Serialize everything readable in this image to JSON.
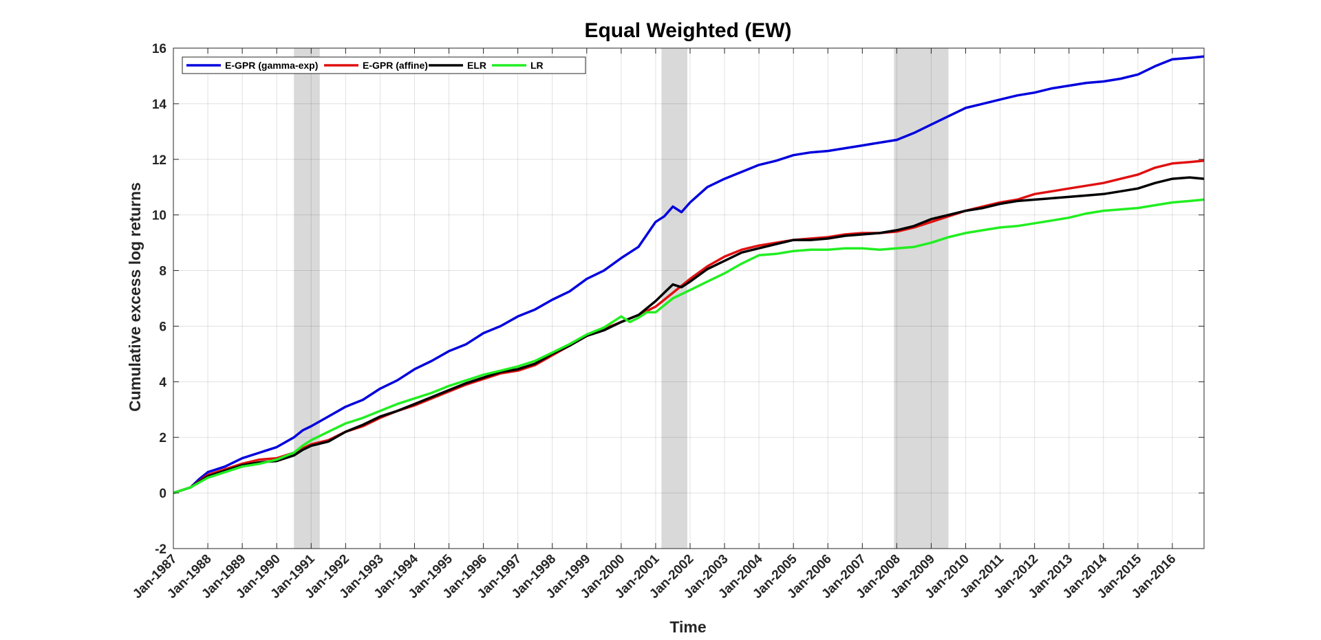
{
  "chart_data": {
    "type": "line",
    "title": "Equal Weighted (EW)",
    "xlabel": "Time",
    "ylabel": "Cumulative excess log returns",
    "xlim": [
      1987.0,
      2016.92
    ],
    "ylim": [
      -2,
      16
    ],
    "yticks": [
      -2,
      0,
      2,
      4,
      6,
      8,
      10,
      12,
      14,
      16
    ],
    "xticks": [
      {
        "label": "Jan-1987",
        "x": 1987
      },
      {
        "label": "Jan-1988",
        "x": 1988
      },
      {
        "label": "Jan-1989",
        "x": 1989
      },
      {
        "label": "Jan-1990",
        "x": 1990
      },
      {
        "label": "Jan-1991",
        "x": 1991
      },
      {
        "label": "Jan-1992",
        "x": 1992
      },
      {
        "label": "Jan-1993",
        "x": 1993
      },
      {
        "label": "Jan-1994",
        "x": 1994
      },
      {
        "label": "Jan-1995",
        "x": 1995
      },
      {
        "label": "Jan-1996",
        "x": 1996
      },
      {
        "label": "Jan-1997",
        "x": 1997
      },
      {
        "label": "Jan-1998",
        "x": 1998
      },
      {
        "label": "Jan-1999",
        "x": 1999
      },
      {
        "label": "Jan-2000",
        "x": 2000
      },
      {
        "label": "Jan-2001",
        "x": 2001
      },
      {
        "label": "Jan-2002",
        "x": 2002
      },
      {
        "label": "Jan-2003",
        "x": 2003
      },
      {
        "label": "Jan-2004",
        "x": 2004
      },
      {
        "label": "Jan-2005",
        "x": 2005
      },
      {
        "label": "Jan-2006",
        "x": 2006
      },
      {
        "label": "Jan-2007",
        "x": 2007
      },
      {
        "label": "Jan-2008",
        "x": 2008
      },
      {
        "label": "Jan-2009",
        "x": 2009
      },
      {
        "label": "Jan-2010",
        "x": 2010
      },
      {
        "label": "Jan-2011",
        "x": 2011
      },
      {
        "label": "Jan-2012",
        "x": 2012
      },
      {
        "label": "Jan-2013",
        "x": 2013
      },
      {
        "label": "Jan-2014",
        "x": 2014
      },
      {
        "label": "Jan-2015",
        "x": 2015
      },
      {
        "label": "Jan-2016",
        "x": 2016
      }
    ],
    "grid": true,
    "legend_position": "top-left",
    "shaded_periods": [
      {
        "start": 1990.5,
        "end": 1991.25
      },
      {
        "start": 2001.17,
        "end": 2001.92
      },
      {
        "start": 2007.92,
        "end": 2009.5
      }
    ],
    "shade_color": "#d9d9d9",
    "series": [
      {
        "name": "E-GPR (gamma-exp)",
        "color": "#0000dd",
        "points": [
          [
            1987.0,
            0.0
          ],
          [
            1987.5,
            0.2
          ],
          [
            1987.75,
            0.5
          ],
          [
            1988.0,
            0.75
          ],
          [
            1988.5,
            0.95
          ],
          [
            1989.0,
            1.25
          ],
          [
            1989.5,
            1.45
          ],
          [
            1990.0,
            1.65
          ],
          [
            1990.5,
            2.0
          ],
          [
            1990.75,
            2.25
          ],
          [
            1991.0,
            2.4
          ],
          [
            1991.5,
            2.75
          ],
          [
            1992.0,
            3.1
          ],
          [
            1992.5,
            3.35
          ],
          [
            1993.0,
            3.75
          ],
          [
            1993.5,
            4.05
          ],
          [
            1994.0,
            4.45
          ],
          [
            1994.5,
            4.75
          ],
          [
            1995.0,
            5.1
          ],
          [
            1995.5,
            5.35
          ],
          [
            1996.0,
            5.75
          ],
          [
            1996.5,
            6.0
          ],
          [
            1997.0,
            6.35
          ],
          [
            1997.5,
            6.6
          ],
          [
            1998.0,
            6.95
          ],
          [
            1998.5,
            7.25
          ],
          [
            1999.0,
            7.7
          ],
          [
            1999.5,
            8.0
          ],
          [
            2000.0,
            8.45
          ],
          [
            2000.5,
            8.85
          ],
          [
            2000.75,
            9.3
          ],
          [
            2001.0,
            9.75
          ],
          [
            2001.25,
            9.95
          ],
          [
            2001.5,
            10.3
          ],
          [
            2001.75,
            10.1
          ],
          [
            2002.0,
            10.45
          ],
          [
            2002.5,
            11.0
          ],
          [
            2003.0,
            11.3
          ],
          [
            2003.5,
            11.55
          ],
          [
            2004.0,
            11.8
          ],
          [
            2004.5,
            11.95
          ],
          [
            2005.0,
            12.15
          ],
          [
            2005.5,
            12.25
          ],
          [
            2006.0,
            12.3
          ],
          [
            2006.5,
            12.4
          ],
          [
            2007.0,
            12.5
          ],
          [
            2007.5,
            12.6
          ],
          [
            2008.0,
            12.7
          ],
          [
            2008.5,
            12.95
          ],
          [
            2009.0,
            13.25
          ],
          [
            2009.5,
            13.55
          ],
          [
            2010.0,
            13.85
          ],
          [
            2010.5,
            14.0
          ],
          [
            2011.0,
            14.15
          ],
          [
            2011.5,
            14.3
          ],
          [
            2012.0,
            14.4
          ],
          [
            2012.5,
            14.55
          ],
          [
            2013.0,
            14.65
          ],
          [
            2013.5,
            14.75
          ],
          [
            2014.0,
            14.8
          ],
          [
            2014.5,
            14.9
          ],
          [
            2015.0,
            15.05
          ],
          [
            2015.5,
            15.35
          ],
          [
            2016.0,
            15.6
          ],
          [
            2016.5,
            15.65
          ],
          [
            2016.92,
            15.7
          ]
        ]
      },
      {
        "name": "E-GPR (affine)",
        "color": "#e01010",
        "points": [
          [
            1987.0,
            0.0
          ],
          [
            1987.5,
            0.2
          ],
          [
            1988.0,
            0.65
          ],
          [
            1988.5,
            0.85
          ],
          [
            1989.0,
            1.05
          ],
          [
            1989.5,
            1.2
          ],
          [
            1990.0,
            1.25
          ],
          [
            1990.5,
            1.45
          ],
          [
            1990.75,
            1.6
          ],
          [
            1991.0,
            1.75
          ],
          [
            1991.5,
            1.9
          ],
          [
            1992.0,
            2.2
          ],
          [
            1992.5,
            2.4
          ],
          [
            1993.0,
            2.7
          ],
          [
            1993.5,
            2.95
          ],
          [
            1994.0,
            3.15
          ],
          [
            1994.5,
            3.4
          ],
          [
            1995.0,
            3.65
          ],
          [
            1995.5,
            3.9
          ],
          [
            1996.0,
            4.1
          ],
          [
            1996.5,
            4.3
          ],
          [
            1997.0,
            4.4
          ],
          [
            1997.5,
            4.6
          ],
          [
            1998.0,
            4.95
          ],
          [
            1998.5,
            5.3
          ],
          [
            1999.0,
            5.65
          ],
          [
            1999.5,
            5.9
          ],
          [
            2000.0,
            6.15
          ],
          [
            2000.5,
            6.4
          ],
          [
            2001.0,
            6.7
          ],
          [
            2001.5,
            7.2
          ],
          [
            2002.0,
            7.7
          ],
          [
            2002.5,
            8.15
          ],
          [
            2003.0,
            8.5
          ],
          [
            2003.5,
            8.75
          ],
          [
            2004.0,
            8.9
          ],
          [
            2004.5,
            9.0
          ],
          [
            2005.0,
            9.1
          ],
          [
            2005.5,
            9.15
          ],
          [
            2006.0,
            9.2
          ],
          [
            2006.5,
            9.3
          ],
          [
            2007.0,
            9.35
          ],
          [
            2007.5,
            9.35
          ],
          [
            2008.0,
            9.4
          ],
          [
            2008.5,
            9.55
          ],
          [
            2009.0,
            9.75
          ],
          [
            2009.5,
            9.95
          ],
          [
            2010.0,
            10.15
          ],
          [
            2010.5,
            10.3
          ],
          [
            2011.0,
            10.45
          ],
          [
            2011.5,
            10.55
          ],
          [
            2012.0,
            10.75
          ],
          [
            2012.5,
            10.85
          ],
          [
            2013.0,
            10.95
          ],
          [
            2013.5,
            11.05
          ],
          [
            2014.0,
            11.15
          ],
          [
            2014.5,
            11.3
          ],
          [
            2015.0,
            11.45
          ],
          [
            2015.5,
            11.7
          ],
          [
            2016.0,
            11.85
          ],
          [
            2016.5,
            11.9
          ],
          [
            2016.92,
            11.95
          ]
        ]
      },
      {
        "name": "ELR",
        "color": "#000000",
        "points": [
          [
            1987.0,
            0.0
          ],
          [
            1987.5,
            0.2
          ],
          [
            1988.0,
            0.6
          ],
          [
            1988.5,
            0.8
          ],
          [
            1989.0,
            1.0
          ],
          [
            1989.5,
            1.1
          ],
          [
            1990.0,
            1.15
          ],
          [
            1990.5,
            1.35
          ],
          [
            1990.75,
            1.55
          ],
          [
            1991.0,
            1.7
          ],
          [
            1991.5,
            1.85
          ],
          [
            1992.0,
            2.2
          ],
          [
            1992.5,
            2.45
          ],
          [
            1993.0,
            2.75
          ],
          [
            1993.5,
            2.95
          ],
          [
            1994.0,
            3.2
          ],
          [
            1994.5,
            3.45
          ],
          [
            1995.0,
            3.7
          ],
          [
            1995.5,
            3.95
          ],
          [
            1996.0,
            4.15
          ],
          [
            1996.5,
            4.35
          ],
          [
            1997.0,
            4.45
          ],
          [
            1997.5,
            4.65
          ],
          [
            1998.0,
            5.0
          ],
          [
            1998.5,
            5.3
          ],
          [
            1999.0,
            5.65
          ],
          [
            1999.5,
            5.85
          ],
          [
            2000.0,
            6.15
          ],
          [
            2000.5,
            6.4
          ],
          [
            2001.0,
            6.9
          ],
          [
            2001.5,
            7.5
          ],
          [
            2001.75,
            7.4
          ],
          [
            2002.0,
            7.6
          ],
          [
            2002.5,
            8.05
          ],
          [
            2003.0,
            8.35
          ],
          [
            2003.5,
            8.65
          ],
          [
            2004.0,
            8.8
          ],
          [
            2004.5,
            8.95
          ],
          [
            2005.0,
            9.1
          ],
          [
            2005.5,
            9.1
          ],
          [
            2006.0,
            9.15
          ],
          [
            2006.5,
            9.25
          ],
          [
            2007.0,
            9.3
          ],
          [
            2007.5,
            9.35
          ],
          [
            2008.0,
            9.45
          ],
          [
            2008.5,
            9.6
          ],
          [
            2009.0,
            9.85
          ],
          [
            2009.5,
            10.0
          ],
          [
            2010.0,
            10.15
          ],
          [
            2010.5,
            10.25
          ],
          [
            2011.0,
            10.4
          ],
          [
            2011.5,
            10.5
          ],
          [
            2012.0,
            10.55
          ],
          [
            2012.5,
            10.6
          ],
          [
            2013.0,
            10.65
          ],
          [
            2013.5,
            10.7
          ],
          [
            2014.0,
            10.75
          ],
          [
            2014.5,
            10.85
          ],
          [
            2015.0,
            10.95
          ],
          [
            2015.5,
            11.15
          ],
          [
            2016.0,
            11.3
          ],
          [
            2016.5,
            11.35
          ],
          [
            2016.92,
            11.3
          ]
        ]
      },
      {
        "name": "LR",
        "color": "#22ee22",
        "points": [
          [
            1987.0,
            0.0
          ],
          [
            1987.5,
            0.2
          ],
          [
            1988.0,
            0.55
          ],
          [
            1988.5,
            0.75
          ],
          [
            1989.0,
            0.95
          ],
          [
            1989.5,
            1.05
          ],
          [
            1990.0,
            1.2
          ],
          [
            1990.5,
            1.45
          ],
          [
            1990.75,
            1.7
          ],
          [
            1991.0,
            1.9
          ],
          [
            1991.5,
            2.2
          ],
          [
            1992.0,
            2.5
          ],
          [
            1992.5,
            2.7
          ],
          [
            1993.0,
            2.95
          ],
          [
            1993.5,
            3.2
          ],
          [
            1994.0,
            3.4
          ],
          [
            1994.5,
            3.6
          ],
          [
            1995.0,
            3.85
          ],
          [
            1995.5,
            4.05
          ],
          [
            1996.0,
            4.25
          ],
          [
            1996.5,
            4.4
          ],
          [
            1997.0,
            4.55
          ],
          [
            1997.5,
            4.75
          ],
          [
            1998.0,
            5.05
          ],
          [
            1998.5,
            5.35
          ],
          [
            1999.0,
            5.7
          ],
          [
            1999.5,
            5.95
          ],
          [
            2000.0,
            6.35
          ],
          [
            2000.25,
            6.15
          ],
          [
            2000.5,
            6.3
          ],
          [
            2000.75,
            6.5
          ],
          [
            2001.0,
            6.5
          ],
          [
            2001.5,
            7.0
          ],
          [
            2002.0,
            7.3
          ],
          [
            2002.5,
            7.6
          ],
          [
            2003.0,
            7.9
          ],
          [
            2003.5,
            8.25
          ],
          [
            2004.0,
            8.55
          ],
          [
            2004.5,
            8.6
          ],
          [
            2005.0,
            8.7
          ],
          [
            2005.5,
            8.75
          ],
          [
            2006.0,
            8.75
          ],
          [
            2006.5,
            8.8
          ],
          [
            2007.0,
            8.8
          ],
          [
            2007.5,
            8.75
          ],
          [
            2008.0,
            8.8
          ],
          [
            2008.5,
            8.85
          ],
          [
            2009.0,
            9.0
          ],
          [
            2009.5,
            9.2
          ],
          [
            2010.0,
            9.35
          ],
          [
            2010.5,
            9.45
          ],
          [
            2011.0,
            9.55
          ],
          [
            2011.5,
            9.6
          ],
          [
            2012.0,
            9.7
          ],
          [
            2012.5,
            9.8
          ],
          [
            2013.0,
            9.9
          ],
          [
            2013.5,
            10.05
          ],
          [
            2014.0,
            10.15
          ],
          [
            2014.5,
            10.2
          ],
          [
            2015.0,
            10.25
          ],
          [
            2015.5,
            10.35
          ],
          [
            2016.0,
            10.45
          ],
          [
            2016.5,
            10.5
          ],
          [
            2016.92,
            10.55
          ]
        ]
      }
    ]
  }
}
